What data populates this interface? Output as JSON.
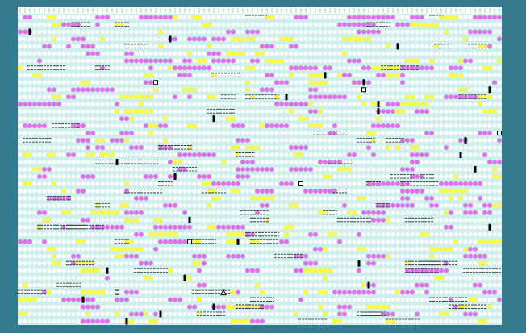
{
  "board": {
    "rows": 43,
    "columns": 100,
    "palette": {
      "background": "#357a8f",
      "board": "#cfeeee",
      "cell": "#ffffff",
      "magenta": "#e070e8",
      "yellow": "#ffff3a",
      "mark": "#000000"
    }
  }
}
